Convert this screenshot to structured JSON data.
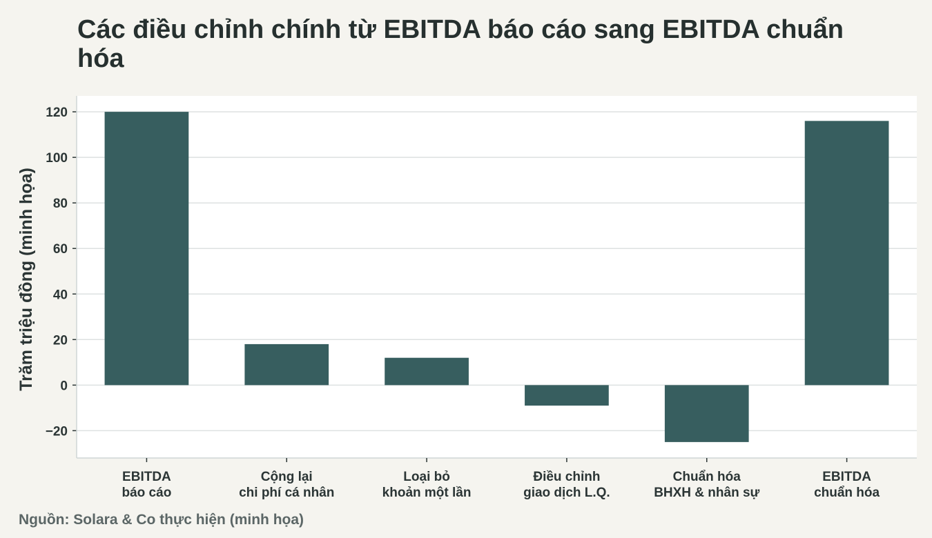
{
  "title": "Các điều chỉnh chính từ EBITDA báo cáo sang EBITDA chuẩn hóa",
  "source": "Nguồn: Solara & Co thực hiện (minh họa)",
  "colors": {
    "background": "#f5f4ef",
    "plot_background": "#ffffff",
    "bar": "#375e5f",
    "grid": "#dde1e1",
    "text": "#2b3535"
  },
  "chart_data": {
    "type": "bar",
    "title": "Các điều chỉnh chính từ EBITDA báo cáo sang EBITDA chuẩn hóa",
    "xlabel": "",
    "ylabel": "Trăm triệu đồng (minh họa)",
    "categories": [
      [
        "EBITDA",
        "báo cáo"
      ],
      [
        "Cộng lại",
        "chi phí cá nhân"
      ],
      [
        "Loại bỏ",
        "khoản một lần"
      ],
      [
        "Điều chỉnh",
        "giao dịch L.Q."
      ],
      [
        "Chuẩn hóa",
        "BHXH & nhân sự"
      ],
      [
        "EBITDA",
        "chuẩn hóa"
      ]
    ],
    "values": [
      120,
      18,
      12,
      -9,
      -25,
      116
    ],
    "yticks": [
      "−20",
      "0",
      "20",
      "40",
      "60",
      "80",
      "100",
      "120"
    ],
    "ytick_values": [
      -20,
      0,
      20,
      40,
      60,
      80,
      100,
      120
    ],
    "ylim": [
      -32,
      127
    ],
    "grid": true,
    "legend": "none"
  }
}
